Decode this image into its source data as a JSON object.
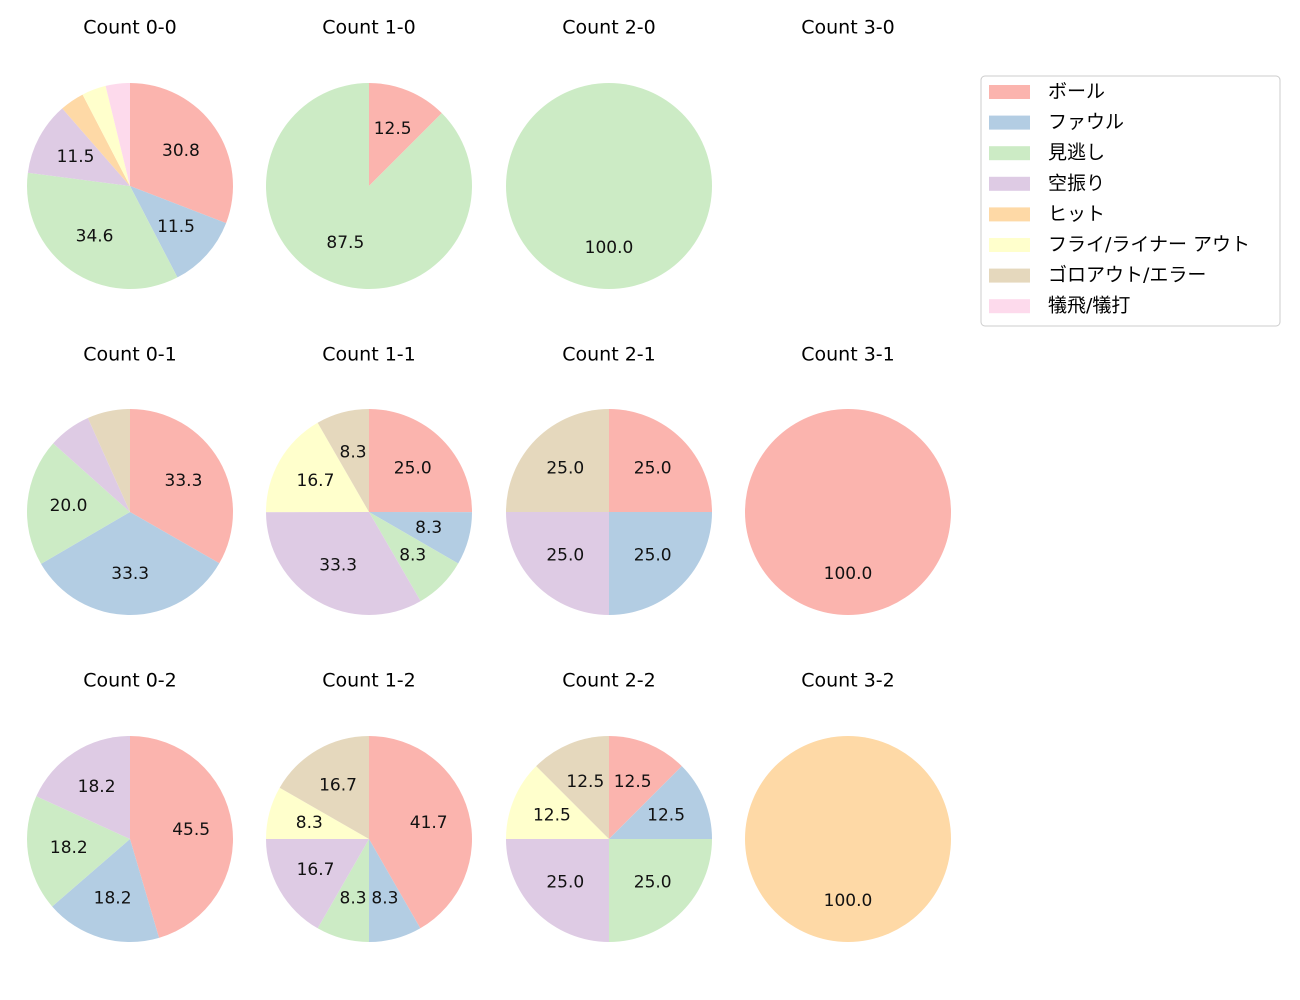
{
  "colors": [
    "#fbb4ae",
    "#b3cde3",
    "#ccebc5",
    "#decbe4",
    "#fed9a6",
    "#ffffcc",
    "#e5d8bd",
    "#fddaec"
  ],
  "legend": {
    "entries": [
      "ボール",
      "ファウル",
      "見逃し",
      "空振り",
      "ヒット",
      "フライ/ライナー アウト",
      "ゴロアウト/エラー",
      "犠飛/犠打"
    ],
    "location": "upper-right"
  },
  "chart_data": [
    {
      "type": "pie",
      "title": "Count 0-0",
      "labels": [
        "ボール",
        "ファウル",
        "見逃し",
        "空振り",
        "ヒット",
        "フライ/ライナー アウト",
        "ゴロアウト/エラー",
        "犠飛/犠打"
      ],
      "values": [
        30.8,
        11.5,
        34.6,
        11.5,
        3.8,
        3.8,
        0,
        3.8
      ],
      "shown_labels": [
        "30.8",
        "11.5",
        "34.6",
        "11.5",
        "",
        "",
        "",
        ""
      ]
    },
    {
      "type": "pie",
      "title": "Count 1-0",
      "labels": [
        "ボール",
        "ファウル",
        "見逃し",
        "空振り",
        "ヒット",
        "フライ/ライナー アウト",
        "ゴロアウト/エラー",
        "犠飛/犠打"
      ],
      "values": [
        12.5,
        0,
        87.5,
        0,
        0,
        0,
        0,
        0
      ],
      "shown_labels": [
        "12.5",
        "",
        "87.5",
        "",
        "",
        "",
        "",
        ""
      ]
    },
    {
      "type": "pie",
      "title": "Count 2-0",
      "labels": [
        "ボール",
        "ファウル",
        "見逃し",
        "空振り",
        "ヒット",
        "フライ/ライナー アウト",
        "ゴロアウト/エラー",
        "犠飛/犠打"
      ],
      "values": [
        0,
        0,
        100.0,
        0,
        0,
        0,
        0,
        0
      ],
      "shown_labels": [
        "",
        "",
        "100.0",
        "",
        "",
        "",
        "",
        ""
      ]
    },
    {
      "type": "pie",
      "title": "Count 3-0",
      "labels": [
        "ボール",
        "ファウル",
        "見逃し",
        "空振り",
        "ヒット",
        "フライ/ライナー アウト",
        "ゴロアウト/エラー",
        "犠飛/犠打"
      ],
      "values": [
        0,
        0,
        0,
        0,
        0,
        0,
        0,
        0
      ],
      "shown_labels": [
        "",
        "",
        "",
        "",
        "",
        "",
        "",
        ""
      ]
    },
    {
      "type": "pie",
      "title": "Count 0-1",
      "labels": [
        "ボール",
        "ファウル",
        "見逃し",
        "空振り",
        "ヒット",
        "フライ/ライナー アウト",
        "ゴロアウト/エラー",
        "犠飛/犠打"
      ],
      "values": [
        33.3,
        33.3,
        20.0,
        6.7,
        0,
        0,
        6.7,
        0
      ],
      "shown_labels": [
        "33.3",
        "33.3",
        "20.0",
        "",
        "",
        "",
        "",
        ""
      ]
    },
    {
      "type": "pie",
      "title": "Count 1-1",
      "labels": [
        "ボール",
        "ファウル",
        "見逃し",
        "空振り",
        "ヒット",
        "フライ/ライナー アウト",
        "ゴロアウト/エラー",
        "犠飛/犠打"
      ],
      "values": [
        25.0,
        8.3,
        8.3,
        33.3,
        0,
        16.7,
        8.3,
        0
      ],
      "shown_labels": [
        "25.0",
        "8.3",
        "8.3",
        "33.3",
        "",
        "16.7",
        "8.3",
        ""
      ]
    },
    {
      "type": "pie",
      "title": "Count 2-1",
      "labels": [
        "ボール",
        "ファウル",
        "見逃し",
        "空振り",
        "ヒット",
        "フライ/ライナー アウト",
        "ゴロアウト/エラー",
        "犠飛/犠打"
      ],
      "values": [
        25.0,
        25.0,
        0,
        25.0,
        0,
        0,
        25.0,
        0
      ],
      "shown_labels": [
        "25.0",
        "25.0",
        "",
        "25.0",
        "",
        "",
        "25.0",
        ""
      ]
    },
    {
      "type": "pie",
      "title": "Count 3-1",
      "labels": [
        "ボール",
        "ファウル",
        "見逃し",
        "空振り",
        "ヒット",
        "フライ/ライナー アウト",
        "ゴロアウト/エラー",
        "犠飛/犠打"
      ],
      "values": [
        100.0,
        0,
        0,
        0,
        0,
        0,
        0,
        0
      ],
      "shown_labels": [
        "100.0",
        "",
        "",
        "",
        "",
        "",
        "",
        ""
      ]
    },
    {
      "type": "pie",
      "title": "Count 0-2",
      "labels": [
        "ボール",
        "ファウル",
        "見逃し",
        "空振り",
        "ヒット",
        "フライ/ライナー アウト",
        "ゴロアウト/エラー",
        "犠飛/犠打"
      ],
      "values": [
        45.5,
        18.2,
        18.2,
        18.2,
        0,
        0,
        0,
        0
      ],
      "shown_labels": [
        "45.5",
        "18.2",
        "18.2",
        "18.2",
        "",
        "",
        "",
        ""
      ]
    },
    {
      "type": "pie",
      "title": "Count 1-2",
      "labels": [
        "ボール",
        "ファウル",
        "見逃し",
        "空振り",
        "ヒット",
        "フライ/ライナー アウト",
        "ゴロアウト/エラー",
        "犠飛/犠打"
      ],
      "values": [
        41.7,
        8.3,
        8.3,
        16.7,
        0,
        8.3,
        16.7,
        0
      ],
      "shown_labels": [
        "41.7",
        "8.3",
        "8.3",
        "16.7",
        "",
        "8.3",
        "16.7",
        ""
      ]
    },
    {
      "type": "pie",
      "title": "Count 2-2",
      "labels": [
        "ボール",
        "ファウル",
        "見逃し",
        "空振り",
        "ヒット",
        "フライ/ライナー アウト",
        "ゴロアウト/エラー",
        "犠飛/犠打"
      ],
      "values": [
        12.5,
        12.5,
        25.0,
        25.0,
        0,
        12.5,
        12.5,
        0
      ],
      "shown_labels": [
        "12.5",
        "12.5",
        "25.0",
        "25.0",
        "",
        "12.5",
        "12.5",
        ""
      ]
    },
    {
      "type": "pie",
      "title": "Count 3-2",
      "labels": [
        "ボール",
        "ファウル",
        "見逃し",
        "空振り",
        "ヒット",
        "フライ/ライナー アウト",
        "ゴロアウト/エラー",
        "犠飛/犠打"
      ],
      "values": [
        0,
        0,
        0,
        0,
        100.0,
        0,
        0,
        0
      ],
      "shown_labels": [
        "",
        "",
        "",
        "",
        "100.0",
        "",
        "",
        ""
      ]
    }
  ]
}
